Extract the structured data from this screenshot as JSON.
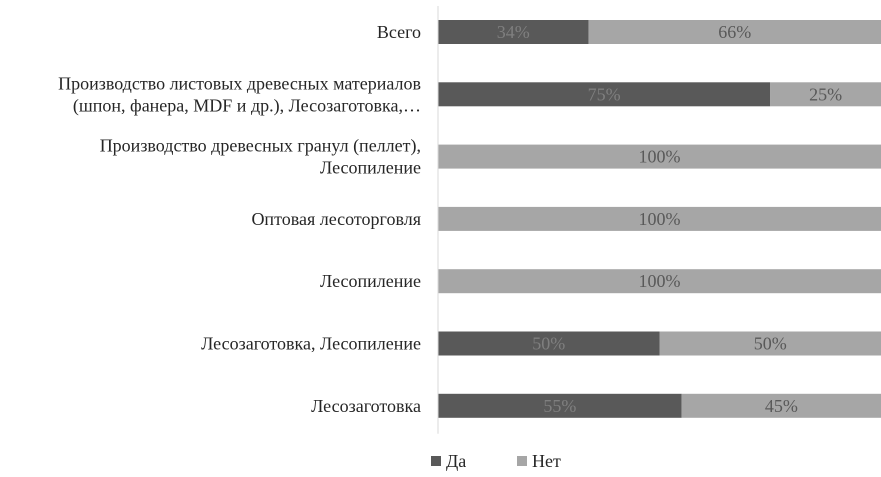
{
  "chart_data": {
    "type": "bar",
    "orientation": "horizontal",
    "stacked": true,
    "categories": [
      [
        "Всего"
      ],
      [
        "Производство листовых древесных материалов",
        "(шпон, фанера, MDF и др.), Лесозаготовка,…"
      ],
      [
        "Производство древесных гранул (пеллет),",
        "Лесопиление"
      ],
      [
        "Оптовая лесоторговля"
      ],
      [
        "Лесопиление"
      ],
      [
        "Лесозаготовка, Лесопиление"
      ],
      [
        "Лесозаготовка"
      ]
    ],
    "series": [
      {
        "name": "Да",
        "values": [
          34,
          75,
          0,
          0,
          0,
          50,
          55
        ],
        "labels": [
          "34%",
          "75%",
          "",
          "",
          "",
          "50%",
          "55%"
        ]
      },
      {
        "name": "Нет",
        "values": [
          66,
          25,
          100,
          100,
          100,
          50,
          45
        ],
        "labels": [
          "66%",
          "25%",
          "100%",
          "100%",
          "100%",
          "50%",
          "45%"
        ]
      }
    ],
    "xlim": [
      0,
      100
    ],
    "grid": false,
    "legend_position": "bottom",
    "colors": {
      "Да": "#595959",
      "Нет": "#a6a6a6",
      "label_on_dark": "#7f7f7f",
      "label_on_light": "#595959",
      "axis": "#d9d9d9"
    }
  }
}
